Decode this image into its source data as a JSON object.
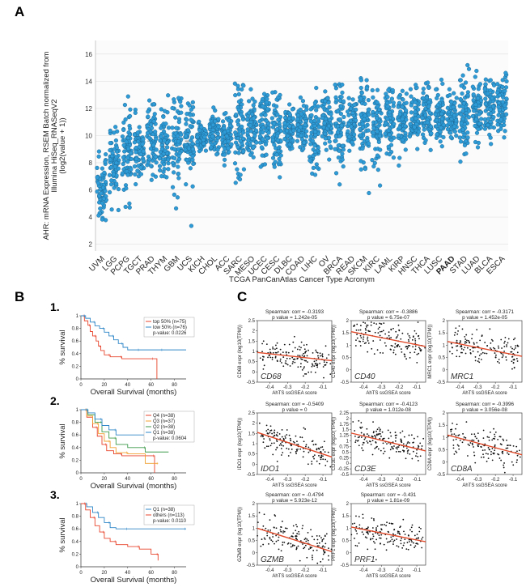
{
  "panels": {
    "a": {
      "letter": "A"
    },
    "b": {
      "letter": "B",
      "km_numbers": [
        "1.",
        "2.",
        "3."
      ]
    },
    "c": {
      "letter": "C"
    }
  },
  "colors": {
    "dot": "#2e9bd6",
    "dot_stroke": "#1a5f8a",
    "highlight": "#e8231c",
    "fit_line": "#e04a2a"
  },
  "chart_data": [
    {
      "type": "scatter",
      "id": "ahr-expression",
      "ylabel": "AHR: mRNA Expression, RSEM Batch normalized from Illumina HiSeq_RNASeqV2 (log2(value + 1))",
      "xlabel": "TCGA PanCanAtlas Cancer Type Acronym",
      "ylim": [
        1.5,
        17
      ],
      "yticks": [
        2,
        4,
        6,
        8,
        10,
        12,
        14,
        16
      ],
      "categories": [
        "UVM",
        "LGG",
        "PCPG",
        "TGCT",
        "PRAD",
        "THYM",
        "GBM",
        "UCS",
        "KICH",
        "CHOL",
        "ACC",
        "SARC",
        "MESO",
        "UCEC",
        "CESC",
        "DLBC",
        "COAD",
        "LIHC",
        "OV",
        "BRCA",
        "READ",
        "SKCM",
        "KIRC",
        "LAML",
        "KIRP",
        "HNSC",
        "THCA",
        "LUSC",
        "PAAD",
        "STAD",
        "LUAD",
        "BLCA",
        "ESCA"
      ],
      "highlight_category": "PAAD",
      "medians": [
        6.0,
        7.8,
        8.8,
        9.0,
        9.6,
        9.2,
        9.3,
        9.6,
        9.8,
        10.2,
        10.0,
        10.5,
        10.5,
        10.6,
        10.5,
        10.5,
        10.8,
        10.0,
        11.0,
        10.6,
        10.9,
        11.1,
        10.7,
        11.2,
        11.0,
        11.3,
        11.4,
        11.5,
        11.6,
        11.6,
        11.9,
        12.1,
        12.0
      ],
      "ranges": [
        [
          3.0,
          9.0
        ],
        [
          4.5,
          12.0
        ],
        [
          3.7,
          13.0
        ],
        [
          6.2,
          12.2
        ],
        [
          6.7,
          13.7
        ],
        [
          6.2,
          13.5
        ],
        [
          3.8,
          13.0
        ],
        [
          3.2,
          12.5
        ],
        [
          8.5,
          11.2
        ],
        [
          7.8,
          12.5
        ],
        [
          7.8,
          12.7
        ],
        [
          4.8,
          14.0
        ],
        [
          8.0,
          13.5
        ],
        [
          5.8,
          13.2
        ],
        [
          6.0,
          13.3
        ],
        [
          8.5,
          13.0
        ],
        [
          8.2,
          13.5
        ],
        [
          4.5,
          13.8
        ],
        [
          8.0,
          13.5
        ],
        [
          6.0,
          13.9
        ],
        [
          8.3,
          13.5
        ],
        [
          4.5,
          14.3
        ],
        [
          6.2,
          13.8
        ],
        [
          6.8,
          13.5
        ],
        [
          7.2,
          14.3
        ],
        [
          8.0,
          14.3
        ],
        [
          8.0,
          14.2
        ],
        [
          8.5,
          14.5
        ],
        [
          9.0,
          14.0
        ],
        [
          8.0,
          15.3
        ],
        [
          9.0,
          15.0
        ],
        [
          8.8,
          15.7
        ],
        [
          9.3,
          14.8
        ]
      ]
    },
    {
      "type": "line",
      "id": "km-1",
      "xlabel": "Overall Survival (months)",
      "ylabel": "% survival",
      "xlim": [
        0,
        90
      ],
      "xticks": [
        0,
        20,
        40,
        60,
        80
      ],
      "ylim": [
        0,
        1.0
      ],
      "yticks": [
        0,
        0.2,
        0.4,
        0.6,
        0.8,
        1.0
      ],
      "legend": [
        "top 50% (n=75)",
        "low 50% (n=76)",
        "p-value: 0.0226"
      ],
      "series": [
        {
          "name": "top 50% (n=75)",
          "color": "#e8442c",
          "x": [
            0,
            3,
            6,
            8,
            10,
            13,
            15,
            17,
            20,
            25,
            28,
            35,
            45,
            62,
            65
          ],
          "y": [
            1.0,
            0.92,
            0.85,
            0.75,
            0.68,
            0.6,
            0.52,
            0.45,
            0.38,
            0.35,
            0.35,
            0.32,
            0.32,
            0.32,
            0.0
          ]
        },
        {
          "name": "low 50% (n=76)",
          "color": "#2e86c8",
          "x": [
            0,
            4,
            8,
            12,
            16,
            20,
            24,
            28,
            32,
            36,
            40,
            50,
            60,
            70,
            90
          ],
          "y": [
            1.0,
            0.96,
            0.9,
            0.84,
            0.8,
            0.74,
            0.68,
            0.62,
            0.56,
            0.5,
            0.46,
            0.46,
            0.46,
            0.46,
            0.46
          ]
        }
      ]
    },
    {
      "type": "line",
      "id": "km-2",
      "xlabel": "Overall Survival (months)",
      "ylabel": "% survival",
      "xlim": [
        0,
        90
      ],
      "xticks": [
        0,
        20,
        40,
        60,
        80
      ],
      "ylim": [
        0,
        1.0
      ],
      "yticks": [
        0,
        0.2,
        0.4,
        0.6,
        0.8,
        1.0
      ],
      "legend": [
        "Q4 (n=38)",
        "Q3 (n=37)",
        "Q2 (n=38)",
        "Q1 (n=38)",
        "p-value: 0.0604"
      ],
      "series": [
        {
          "name": "Q4 (n=38)",
          "color": "#e8442c",
          "x": [
            0,
            5,
            10,
            14,
            18,
            22,
            28,
            35,
            50,
            63
          ],
          "y": [
            1.0,
            0.88,
            0.72,
            0.58,
            0.45,
            0.35,
            0.3,
            0.27,
            0.27,
            0.0
          ]
        },
        {
          "name": "Q3 (n=37)",
          "color": "#f0a030",
          "x": [
            0,
            5,
            10,
            15,
            20,
            25,
            30,
            40,
            55,
            66
          ],
          "y": [
            1.0,
            0.9,
            0.78,
            0.62,
            0.5,
            0.4,
            0.32,
            0.3,
            0.15,
            0.15
          ]
        },
        {
          "name": "Q2 (n=38)",
          "color": "#3d9a4a",
          "x": [
            0,
            6,
            12,
            18,
            24,
            30,
            40,
            55,
            75
          ],
          "y": [
            1.0,
            0.92,
            0.8,
            0.65,
            0.55,
            0.45,
            0.4,
            0.33,
            0.33
          ]
        },
        {
          "name": "Q1 (n=38)",
          "color": "#2e86c8",
          "x": [
            0,
            6,
            12,
            18,
            24,
            30,
            40,
            60,
            90
          ],
          "y": [
            1.0,
            0.95,
            0.85,
            0.75,
            0.68,
            0.6,
            0.6,
            0.6,
            0.6
          ]
        }
      ]
    },
    {
      "type": "line",
      "id": "km-3",
      "xlabel": "Overall Survival (months)",
      "ylabel": "% survival",
      "xlim": [
        0,
        90
      ],
      "xticks": [
        0,
        20,
        40,
        60,
        80
      ],
      "ylim": [
        0,
        1.0
      ],
      "yticks": [
        0,
        0.2,
        0.4,
        0.6,
        0.8,
        1.0
      ],
      "legend": [
        "Q1 (n=38)",
        "others (n=113)",
        "p-value: 0.0110"
      ],
      "series": [
        {
          "name": "Q1 (n=38)",
          "color": "#2e86c8",
          "x": [
            0,
            5,
            10,
            15,
            20,
            25,
            30,
            40,
            60,
            90
          ],
          "y": [
            1.0,
            0.95,
            0.86,
            0.78,
            0.7,
            0.62,
            0.6,
            0.6,
            0.6,
            0.6
          ]
        },
        {
          "name": "others (n=113)",
          "color": "#e8442c",
          "x": [
            0,
            4,
            8,
            12,
            16,
            20,
            25,
            30,
            40,
            50,
            60,
            66
          ],
          "y": [
            1.0,
            0.9,
            0.78,
            0.65,
            0.55,
            0.45,
            0.4,
            0.35,
            0.32,
            0.28,
            0.2,
            0.1
          ]
        }
      ]
    },
    {
      "type": "scatter",
      "id": "cor-cd68",
      "title": "Spearman: corr = -0.3193",
      "subtitle": "p value = 1.242e-05",
      "xlabel": "AhTS ssGSEA score",
      "ylabel": "CD68 expr (log10(TPM))",
      "gene": "CD68",
      "xlim": [
        -0.47,
        -0.05
      ],
      "xticks": [
        -0.4,
        -0.3,
        -0.2,
        -0.1
      ],
      "ylim": [
        -0.5,
        2.5
      ],
      "yticks": [
        -0.5,
        0.0,
        0.5,
        1.0,
        1.5,
        2.0,
        2.5
      ],
      "fit": {
        "x": [
          -0.47,
          -0.05
        ],
        "y": [
          0.95,
          0.55
        ]
      }
    },
    {
      "type": "scatter",
      "id": "cor-cd40",
      "title": "Spearman: corr = -0.3886",
      "subtitle": "p value = 6.75e-07",
      "xlabel": "AhTS ssGSEA score",
      "ylabel": "CD40 expr (log10(TPM))",
      "gene": "CD40",
      "xlim": [
        -0.47,
        -0.05
      ],
      "xticks": [
        -0.4,
        -0.3,
        -0.2,
        -0.1
      ],
      "ylim": [
        -0.5,
        2.0
      ],
      "yticks": [
        -0.5,
        0.0,
        0.5,
        1.0,
        1.5,
        2.0
      ],
      "fit": {
        "x": [
          -0.47,
          -0.05
        ],
        "y": [
          1.55,
          0.95
        ]
      }
    },
    {
      "type": "scatter",
      "id": "cor-mrc1",
      "title": "Spearman: corr = -0.3171",
      "subtitle": "p value = 1.452e-05",
      "xlabel": "AhTS ssGSEA score",
      "ylabel": "MRC1 expr (log10(TPM))",
      "gene": "MRC1",
      "xlim": [
        -0.47,
        -0.05
      ],
      "xticks": [
        -0.4,
        -0.3,
        -0.2,
        -0.1
      ],
      "ylim": [
        -0.5,
        2.0
      ],
      "yticks": [
        -0.5,
        0.0,
        0.5,
        1.0,
        1.5,
        2.0
      ],
      "fit": {
        "x": [
          -0.47,
          -0.05
        ],
        "y": [
          1.15,
          0.55
        ]
      }
    },
    {
      "type": "scatter",
      "id": "cor-ido1",
      "title": "Spearman: corr = -0.5409",
      "subtitle": "p value = 0",
      "xlabel": "AhTS ssGSEA score",
      "ylabel": "IDO1 expr (log10(TPM))",
      "gene": "IDO1",
      "xlim": [
        -0.47,
        -0.05
      ],
      "xticks": [
        -0.4,
        -0.3,
        -0.2,
        -0.1
      ],
      "ylim": [
        -0.5,
        2.5
      ],
      "yticks": [
        -0.5,
        0.0,
        0.5,
        1.0,
        1.5,
        2.0,
        2.5
      ],
      "fit": {
        "x": [
          -0.47,
          -0.05
        ],
        "y": [
          1.55,
          0.35
        ]
      }
    },
    {
      "type": "scatter",
      "id": "cor-cd3e",
      "title": "Spearman: corr = -0.4123",
      "subtitle": "p value = 1.012e-08",
      "xlabel": "AhTS ssGSEA score",
      "ylabel": "CD3E expr (log10(TPM))",
      "gene": "CD3E",
      "xlim": [
        -0.47,
        -0.05
      ],
      "xticks": [
        -0.4,
        -0.3,
        -0.2,
        -0.1
      ],
      "ylim": [
        -0.5,
        2.25
      ],
      "yticks": [
        -0.5,
        -0.25,
        0.0,
        0.25,
        0.5,
        0.75,
        1.0,
        1.25,
        1.5,
        1.75,
        2.0,
        2.25
      ],
      "fit": {
        "x": [
          -0.47,
          -0.05
        ],
        "y": [
          1.35,
          0.55
        ]
      }
    },
    {
      "type": "scatter",
      "id": "cor-cd8a",
      "title": "Spearman: corr = -0.3996",
      "subtitle": "p value = 3.056e-08",
      "xlabel": "AhTS ssGSEA score",
      "ylabel": "CD8A expr (log10(TPM))",
      "gene": "CD8A",
      "xlim": [
        -0.47,
        -0.05
      ],
      "xticks": [
        -0.4,
        -0.3,
        -0.2,
        -0.1
      ],
      "ylim": [
        -0.5,
        2.0
      ],
      "yticks": [
        -0.5,
        0.0,
        0.5,
        1.0,
        1.5,
        2.0
      ],
      "fit": {
        "x": [
          -0.47,
          -0.05
        ],
        "y": [
          1.1,
          0.3
        ]
      }
    },
    {
      "type": "scatter",
      "id": "cor-gzmb",
      "title": "Spearman: corr = -0.4794",
      "subtitle": "p value = 5.923e-12",
      "xlabel": "AhTS ssGSEA score",
      "ylabel": "GZMB expr (log10(TPM))",
      "gene": "GZMB",
      "xlim": [
        -0.47,
        -0.05
      ],
      "xticks": [
        -0.4,
        -0.3,
        -0.2,
        -0.1
      ],
      "ylim": [
        -0.5,
        2.0
      ],
      "yticks": [
        -0.5,
        0.0,
        0.5,
        1.0,
        1.5,
        2.0
      ],
      "fit": {
        "x": [
          -0.47,
          -0.05
        ],
        "y": [
          1.0,
          0.05
        ]
      }
    },
    {
      "type": "scatter",
      "id": "cor-prf1",
      "title": "Spearman: corr = -0.431",
      "subtitle": "p value = 1.81e-09",
      "xlabel": "AhTS ssGSEA score",
      "ylabel": "PRF1 expr (log10(TPM))",
      "gene": "PRF1",
      "xlim": [
        -0.47,
        -0.05
      ],
      "xticks": [
        -0.4,
        -0.3,
        -0.2,
        -0.1
      ],
      "ylim": [
        -0.5,
        2.0
      ],
      "yticks": [
        -0.5,
        0.0,
        0.5,
        1.0,
        1.5,
        2.0
      ],
      "fit": {
        "x": [
          -0.47,
          -0.05
        ],
        "y": [
          1.05,
          0.45
        ]
      }
    }
  ]
}
